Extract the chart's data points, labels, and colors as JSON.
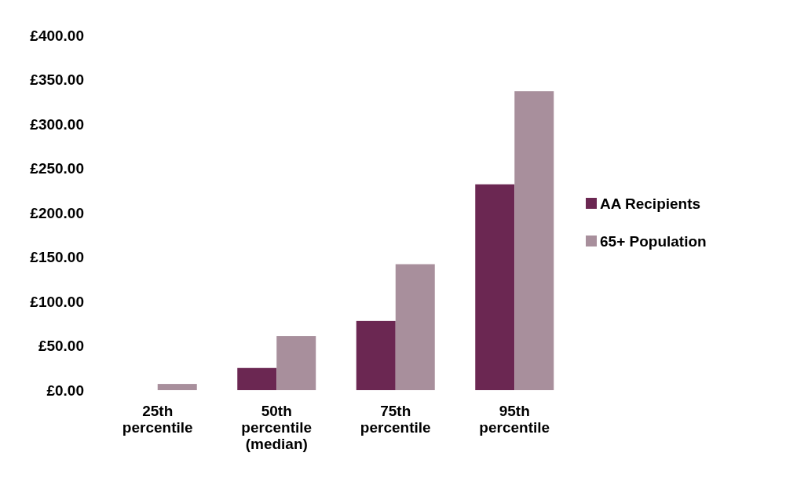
{
  "chart_data": {
    "type": "bar",
    "categories": [
      "25th\npercentile",
      "50th\npercentile\n(median)",
      "75th\npercentile",
      "95th\npercentile"
    ],
    "series": [
      {
        "name": "AA Recipients",
        "color": "#6b2752",
        "values": [
          0,
          25,
          78,
          232
        ]
      },
      {
        "name": "65+ Population",
        "color": "#a88f9c",
        "values": [
          7,
          61,
          142,
          337
        ]
      }
    ],
    "ylim": [
      0,
      400
    ],
    "yticks": [
      {
        "value": 0,
        "label": "£0.00"
      },
      {
        "value": 50,
        "label": "£50.00"
      },
      {
        "value": 100,
        "label": "£100.00"
      },
      {
        "value": 150,
        "label": "£150.00"
      },
      {
        "value": 200,
        "label": "£200.00"
      },
      {
        "value": 250,
        "label": "£250.00"
      },
      {
        "value": 300,
        "label": "£300.00"
      },
      {
        "value": 350,
        "label": "£350.00"
      },
      {
        "value": 400,
        "label": "£400.00"
      }
    ],
    "grid": false,
    "legend": "right"
  }
}
